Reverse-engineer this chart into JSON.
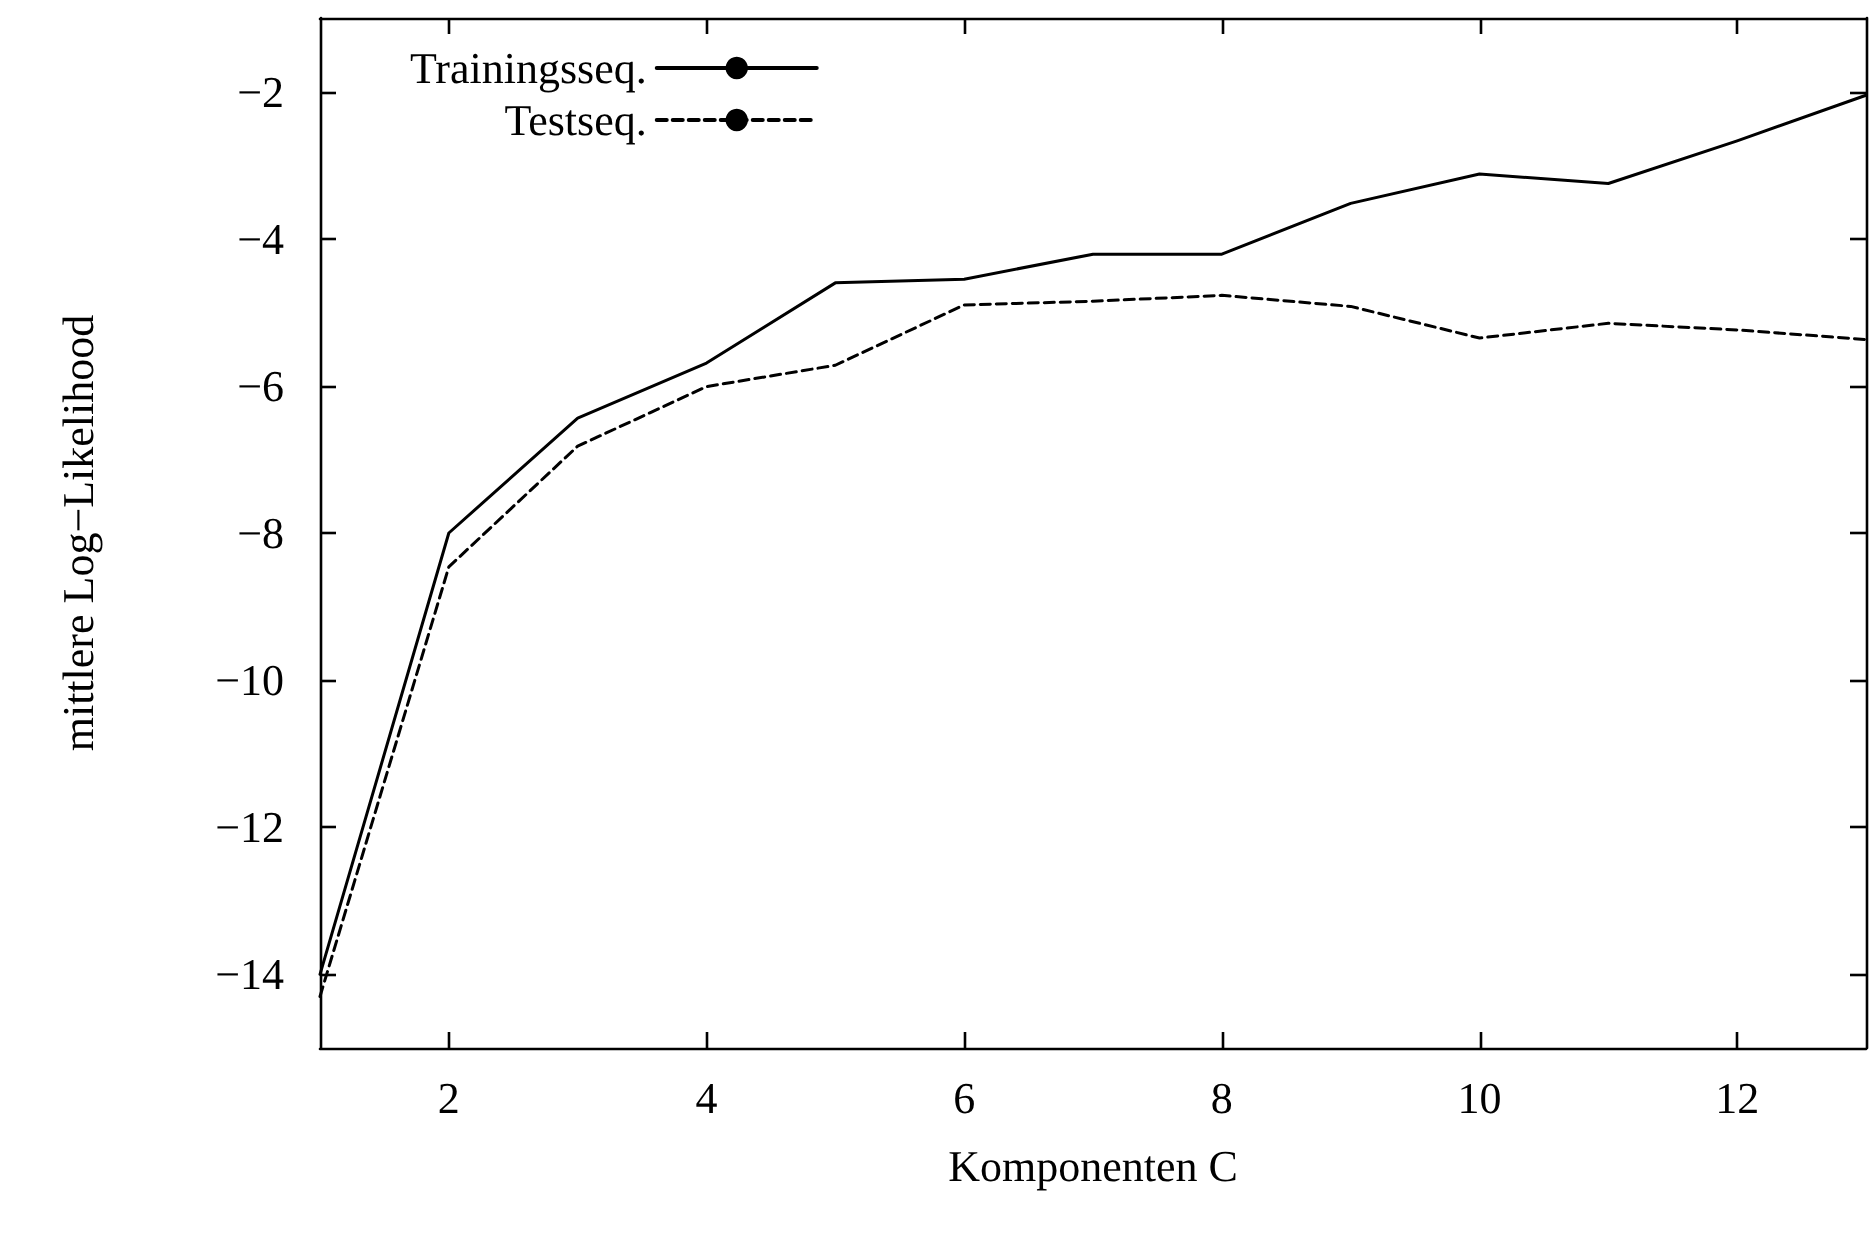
{
  "chart_data": {
    "type": "line",
    "xlabel": "Komponenten C",
    "ylabel": "mittlere Log−Likelihood",
    "x": [
      1,
      2,
      3,
      4,
      5,
      6,
      7,
      8,
      9,
      10,
      11,
      12,
      13
    ],
    "series": [
      {
        "name": "Trainingsseq.",
        "color": "#000000",
        "line_style": "solid",
        "values": [
          -14.0,
          -8.0,
          -6.44,
          -5.69,
          -4.6,
          -4.55,
          -4.21,
          -4.21,
          -3.52,
          -3.12,
          -3.25,
          -2.67,
          -2.05
        ]
      },
      {
        "name": "Testseq.",
        "color": "#000000",
        "line_style": "dashed",
        "values": [
          -14.3,
          -8.46,
          -6.82,
          -6.01,
          -5.72,
          -4.9,
          -4.85,
          -4.77,
          -4.92,
          -5.35,
          -5.15,
          -5.24,
          -5.37
        ]
      }
    ],
    "xlim": [
      1,
      13
    ],
    "xticks": [
      2,
      4,
      6,
      8,
      10,
      12
    ],
    "ylim": [
      -15,
      -1
    ],
    "yticks": [
      -14,
      -12,
      -10,
      -8,
      -6,
      -4,
      -2
    ],
    "grid": false,
    "legend": "top left",
    "marker": "none"
  }
}
